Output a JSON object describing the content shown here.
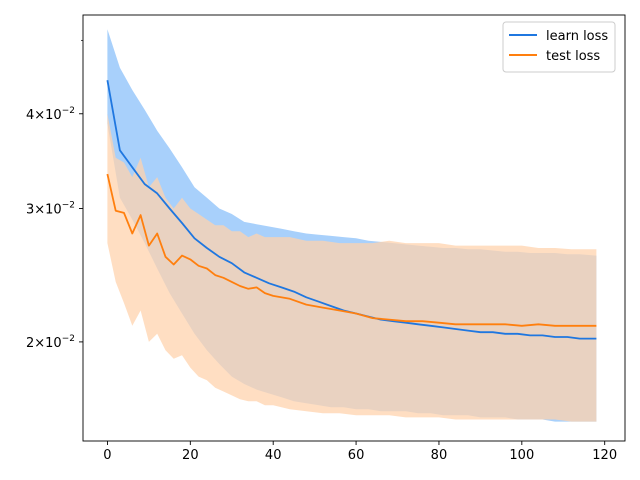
{
  "chart_data": {
    "type": "line",
    "title": "",
    "xlabel": "",
    "ylabel": "",
    "y_scale": "log",
    "xlim": [
      -5.9,
      124.9
    ],
    "ylim": [
      0.0148,
      0.054
    ],
    "grid": false,
    "legend_position": "top-right",
    "x_ticks": [
      0,
      20,
      40,
      60,
      80,
      100,
      120
    ],
    "x_tick_labels": [
      "0",
      "20",
      "40",
      "60",
      "80",
      "100",
      "120"
    ],
    "y_ticks": [
      0.02,
      0.03,
      0.04
    ],
    "y_tick_labels": [
      {
        "base": "2×10",
        "exp": "−2"
      },
      {
        "base": "3×10",
        "exp": "−2"
      },
      {
        "base": "4×10",
        "exp": "−2"
      }
    ],
    "y_minor_ticks": [
      0.05
    ],
    "series": [
      {
        "name": "learn loss",
        "color": "#1f77e0",
        "band_color": "#a8d0fb",
        "x": [
          0,
          3,
          6,
          9,
          12,
          15,
          18,
          21,
          24,
          27,
          30,
          33,
          36,
          39,
          42,
          45,
          48,
          51,
          54,
          57,
          60,
          63,
          66,
          69,
          72,
          75,
          78,
          81,
          84,
          87,
          90,
          93,
          96,
          99,
          102,
          105,
          108,
          111,
          114,
          118
        ],
        "mean": [
          0.0443,
          0.0358,
          0.034,
          0.0323,
          0.0314,
          0.03,
          0.0287,
          0.0274,
          0.0266,
          0.0259,
          0.0254,
          0.0247,
          0.0243,
          0.0239,
          0.0236,
          0.0233,
          0.0229,
          0.0226,
          0.0223,
          0.022,
          0.0218,
          0.0216,
          0.0214,
          0.0213,
          0.0212,
          0.0211,
          0.021,
          0.0209,
          0.0208,
          0.0207,
          0.0206,
          0.0206,
          0.0205,
          0.0205,
          0.0204,
          0.0204,
          0.0203,
          0.0203,
          0.0202,
          0.0202
        ],
        "upper": [
          0.0517,
          0.046,
          0.043,
          0.0405,
          0.038,
          0.036,
          0.034,
          0.032,
          0.031,
          0.03,
          0.0295,
          0.0288,
          0.0286,
          0.0284,
          0.0282,
          0.028,
          0.0278,
          0.0277,
          0.0276,
          0.0275,
          0.0274,
          0.0272,
          0.0271,
          0.027,
          0.0269,
          0.0268,
          0.0267,
          0.0266,
          0.0266,
          0.0265,
          0.0265,
          0.0264,
          0.0263,
          0.0263,
          0.0262,
          0.0262,
          0.0262,
          0.0261,
          0.0261,
          0.026
        ],
        "lower": [
          0.0388,
          0.031,
          0.029,
          0.027,
          0.025,
          0.0232,
          0.0218,
          0.0205,
          0.0195,
          0.0187,
          0.018,
          0.0176,
          0.0173,
          0.0171,
          0.0169,
          0.0167,
          0.0166,
          0.0165,
          0.0164,
          0.0164,
          0.0163,
          0.0163,
          0.0162,
          0.0162,
          0.0162,
          0.0161,
          0.0161,
          0.016,
          0.016,
          0.016,
          0.0159,
          0.0159,
          0.0159,
          0.0158,
          0.0158,
          0.0158,
          0.0157,
          0.0157,
          0.0157,
          0.0157
        ]
      },
      {
        "name": "test loss",
        "color": "#ff7f0e",
        "band_color": "#ffd3ae",
        "x": [
          0,
          2,
          4,
          6,
          8,
          10,
          12,
          14,
          16,
          18,
          20,
          22,
          24,
          26,
          28,
          30,
          32,
          34,
          36,
          38,
          40,
          44,
          48,
          52,
          56,
          60,
          64,
          68,
          72,
          76,
          80,
          84,
          88,
          92,
          96,
          100,
          104,
          108,
          112,
          118
        ],
        "mean": [
          0.0333,
          0.0298,
          0.0296,
          0.0278,
          0.0294,
          0.0268,
          0.0278,
          0.0259,
          0.0253,
          0.026,
          0.0257,
          0.0252,
          0.025,
          0.0245,
          0.0243,
          0.024,
          0.0237,
          0.0235,
          0.0236,
          0.0232,
          0.023,
          0.0228,
          0.0224,
          0.0222,
          0.022,
          0.0218,
          0.0215,
          0.0214,
          0.0213,
          0.0213,
          0.0212,
          0.0211,
          0.0211,
          0.0211,
          0.0211,
          0.021,
          0.0211,
          0.021,
          0.021,
          0.021
        ],
        "upper": [
          0.04,
          0.035,
          0.0345,
          0.033,
          0.035,
          0.032,
          0.033,
          0.031,
          0.03,
          0.031,
          0.03,
          0.0295,
          0.029,
          0.0285,
          0.0285,
          0.028,
          0.028,
          0.0275,
          0.0278,
          0.0275,
          0.0275,
          0.0275,
          0.0272,
          0.0272,
          0.027,
          0.027,
          0.027,
          0.0272,
          0.027,
          0.027,
          0.027,
          0.0268,
          0.0268,
          0.0268,
          0.0268,
          0.0268,
          0.0266,
          0.0266,
          0.0265,
          0.0265
        ],
        "lower": [
          0.027,
          0.024,
          0.0225,
          0.021,
          0.022,
          0.02,
          0.0205,
          0.0195,
          0.019,
          0.0192,
          0.0185,
          0.018,
          0.0178,
          0.0174,
          0.0172,
          0.017,
          0.0168,
          0.0167,
          0.0167,
          0.0165,
          0.0165,
          0.0163,
          0.0162,
          0.0161,
          0.0161,
          0.016,
          0.016,
          0.016,
          0.0159,
          0.0159,
          0.0159,
          0.0158,
          0.0158,
          0.0158,
          0.0158,
          0.0158,
          0.0158,
          0.0158,
          0.0157,
          0.0157
        ]
      }
    ],
    "band_overlap_color": "#d8cbc6"
  }
}
